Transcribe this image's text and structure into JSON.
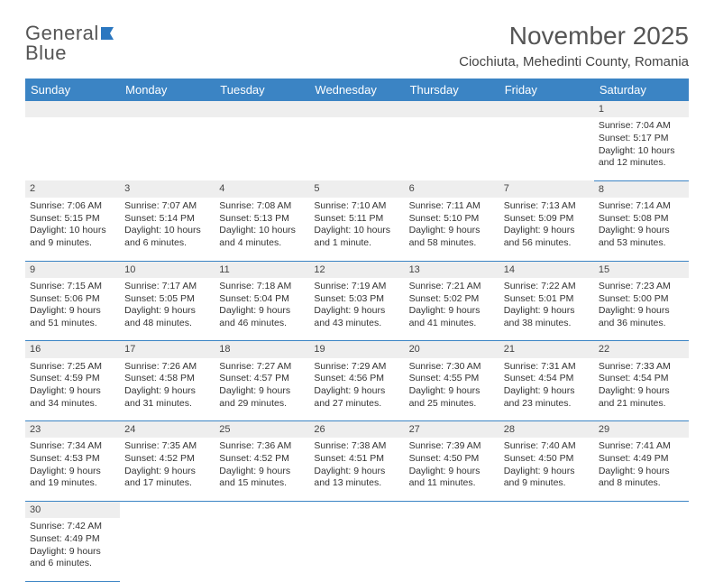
{
  "logo": {
    "line1": "General",
    "line2": "Blue"
  },
  "title": "November 2025",
  "location": "Ciochiuta, Mehedinti County, Romania",
  "colors": {
    "header_bg": "#3b84c4",
    "header_text": "#ffffff",
    "daynum_bg": "#eeeeee",
    "border": "#3b84c4",
    "text": "#333333",
    "logo_grey": "#555555",
    "logo_blue": "#2b77c0"
  },
  "daysOfWeek": [
    "Sunday",
    "Monday",
    "Tuesday",
    "Wednesday",
    "Thursday",
    "Friday",
    "Saturday"
  ],
  "weeks": [
    [
      null,
      null,
      null,
      null,
      null,
      null,
      {
        "n": "1",
        "sr": "Sunrise: 7:04 AM",
        "ss": "Sunset: 5:17 PM",
        "dl": "Daylight: 10 hours and 12 minutes."
      }
    ],
    [
      {
        "n": "2",
        "sr": "Sunrise: 7:06 AM",
        "ss": "Sunset: 5:15 PM",
        "dl": "Daylight: 10 hours and 9 minutes."
      },
      {
        "n": "3",
        "sr": "Sunrise: 7:07 AM",
        "ss": "Sunset: 5:14 PM",
        "dl": "Daylight: 10 hours and 6 minutes."
      },
      {
        "n": "4",
        "sr": "Sunrise: 7:08 AM",
        "ss": "Sunset: 5:13 PM",
        "dl": "Daylight: 10 hours and 4 minutes."
      },
      {
        "n": "5",
        "sr": "Sunrise: 7:10 AM",
        "ss": "Sunset: 5:11 PM",
        "dl": "Daylight: 10 hours and 1 minute."
      },
      {
        "n": "6",
        "sr": "Sunrise: 7:11 AM",
        "ss": "Sunset: 5:10 PM",
        "dl": "Daylight: 9 hours and 58 minutes."
      },
      {
        "n": "7",
        "sr": "Sunrise: 7:13 AM",
        "ss": "Sunset: 5:09 PM",
        "dl": "Daylight: 9 hours and 56 minutes."
      },
      {
        "n": "8",
        "sr": "Sunrise: 7:14 AM",
        "ss": "Sunset: 5:08 PM",
        "dl": "Daylight: 9 hours and 53 minutes."
      }
    ],
    [
      {
        "n": "9",
        "sr": "Sunrise: 7:15 AM",
        "ss": "Sunset: 5:06 PM",
        "dl": "Daylight: 9 hours and 51 minutes."
      },
      {
        "n": "10",
        "sr": "Sunrise: 7:17 AM",
        "ss": "Sunset: 5:05 PM",
        "dl": "Daylight: 9 hours and 48 minutes."
      },
      {
        "n": "11",
        "sr": "Sunrise: 7:18 AM",
        "ss": "Sunset: 5:04 PM",
        "dl": "Daylight: 9 hours and 46 minutes."
      },
      {
        "n": "12",
        "sr": "Sunrise: 7:19 AM",
        "ss": "Sunset: 5:03 PM",
        "dl": "Daylight: 9 hours and 43 minutes."
      },
      {
        "n": "13",
        "sr": "Sunrise: 7:21 AM",
        "ss": "Sunset: 5:02 PM",
        "dl": "Daylight: 9 hours and 41 minutes."
      },
      {
        "n": "14",
        "sr": "Sunrise: 7:22 AM",
        "ss": "Sunset: 5:01 PM",
        "dl": "Daylight: 9 hours and 38 minutes."
      },
      {
        "n": "15",
        "sr": "Sunrise: 7:23 AM",
        "ss": "Sunset: 5:00 PM",
        "dl": "Daylight: 9 hours and 36 minutes."
      }
    ],
    [
      {
        "n": "16",
        "sr": "Sunrise: 7:25 AM",
        "ss": "Sunset: 4:59 PM",
        "dl": "Daylight: 9 hours and 34 minutes."
      },
      {
        "n": "17",
        "sr": "Sunrise: 7:26 AM",
        "ss": "Sunset: 4:58 PM",
        "dl": "Daylight: 9 hours and 31 minutes."
      },
      {
        "n": "18",
        "sr": "Sunrise: 7:27 AM",
        "ss": "Sunset: 4:57 PM",
        "dl": "Daylight: 9 hours and 29 minutes."
      },
      {
        "n": "19",
        "sr": "Sunrise: 7:29 AM",
        "ss": "Sunset: 4:56 PM",
        "dl": "Daylight: 9 hours and 27 minutes."
      },
      {
        "n": "20",
        "sr": "Sunrise: 7:30 AM",
        "ss": "Sunset: 4:55 PM",
        "dl": "Daylight: 9 hours and 25 minutes."
      },
      {
        "n": "21",
        "sr": "Sunrise: 7:31 AM",
        "ss": "Sunset: 4:54 PM",
        "dl": "Daylight: 9 hours and 23 minutes."
      },
      {
        "n": "22",
        "sr": "Sunrise: 7:33 AM",
        "ss": "Sunset: 4:54 PM",
        "dl": "Daylight: 9 hours and 21 minutes."
      }
    ],
    [
      {
        "n": "23",
        "sr": "Sunrise: 7:34 AM",
        "ss": "Sunset: 4:53 PM",
        "dl": "Daylight: 9 hours and 19 minutes."
      },
      {
        "n": "24",
        "sr": "Sunrise: 7:35 AM",
        "ss": "Sunset: 4:52 PM",
        "dl": "Daylight: 9 hours and 17 minutes."
      },
      {
        "n": "25",
        "sr": "Sunrise: 7:36 AM",
        "ss": "Sunset: 4:52 PM",
        "dl": "Daylight: 9 hours and 15 minutes."
      },
      {
        "n": "26",
        "sr": "Sunrise: 7:38 AM",
        "ss": "Sunset: 4:51 PM",
        "dl": "Daylight: 9 hours and 13 minutes."
      },
      {
        "n": "27",
        "sr": "Sunrise: 7:39 AM",
        "ss": "Sunset: 4:50 PM",
        "dl": "Daylight: 9 hours and 11 minutes."
      },
      {
        "n": "28",
        "sr": "Sunrise: 7:40 AM",
        "ss": "Sunset: 4:50 PM",
        "dl": "Daylight: 9 hours and 9 minutes."
      },
      {
        "n": "29",
        "sr": "Sunrise: 7:41 AM",
        "ss": "Sunset: 4:49 PM",
        "dl": "Daylight: 9 hours and 8 minutes."
      }
    ],
    [
      {
        "n": "30",
        "sr": "Sunrise: 7:42 AM",
        "ss": "Sunset: 4:49 PM",
        "dl": "Daylight: 9 hours and 6 minutes."
      },
      null,
      null,
      null,
      null,
      null,
      null
    ]
  ]
}
